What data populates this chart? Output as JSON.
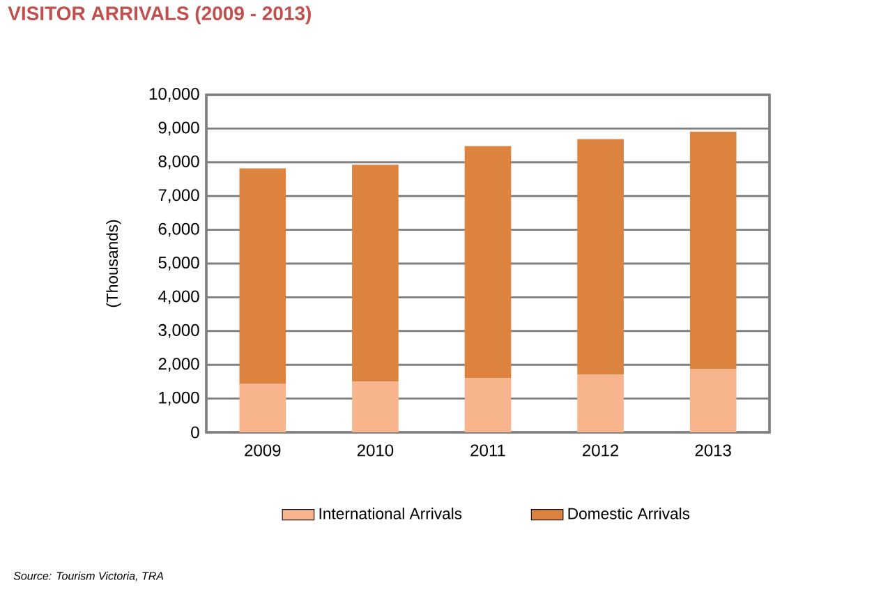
{
  "chart_data": {
    "type": "bar",
    "title": "VISITOR ARRIVALS (2009 - 2013)",
    "ylabel": "(Thousands)",
    "categories": [
      "2009",
      "2010",
      "2011",
      "2012",
      "2013"
    ],
    "series": [
      {
        "name": "International Arrivals",
        "color": "#f8b48c",
        "values": [
          1430,
          1500,
          1600,
          1710,
          1880
        ]
      },
      {
        "name": "Domestic Arrivals",
        "color": "#dc843f",
        "values": [
          6390,
          6430,
          6880,
          6980,
          7030
        ]
      }
    ],
    "stacked": true,
    "ylim": [
      0,
      10000
    ],
    "yticks": [
      {
        "value": 0,
        "label": "0"
      },
      {
        "value": 1000,
        "label": "1,000"
      },
      {
        "value": 2000,
        "label": "2,000"
      },
      {
        "value": 3000,
        "label": "3,000"
      },
      {
        "value": 4000,
        "label": "4,000"
      },
      {
        "value": 5000,
        "label": "5,000"
      },
      {
        "value": 6000,
        "label": "6,000"
      },
      {
        "value": 7000,
        "label": "7,000"
      },
      {
        "value": 8000,
        "label": "8,000"
      },
      {
        "value": 9000,
        "label": "9,000"
      },
      {
        "value": 10000,
        "label": "10,000"
      }
    ],
    "grid": "y",
    "legend": "bottom",
    "annotations": [
      "Source: Tourism Victoria, TRA"
    ]
  }
}
